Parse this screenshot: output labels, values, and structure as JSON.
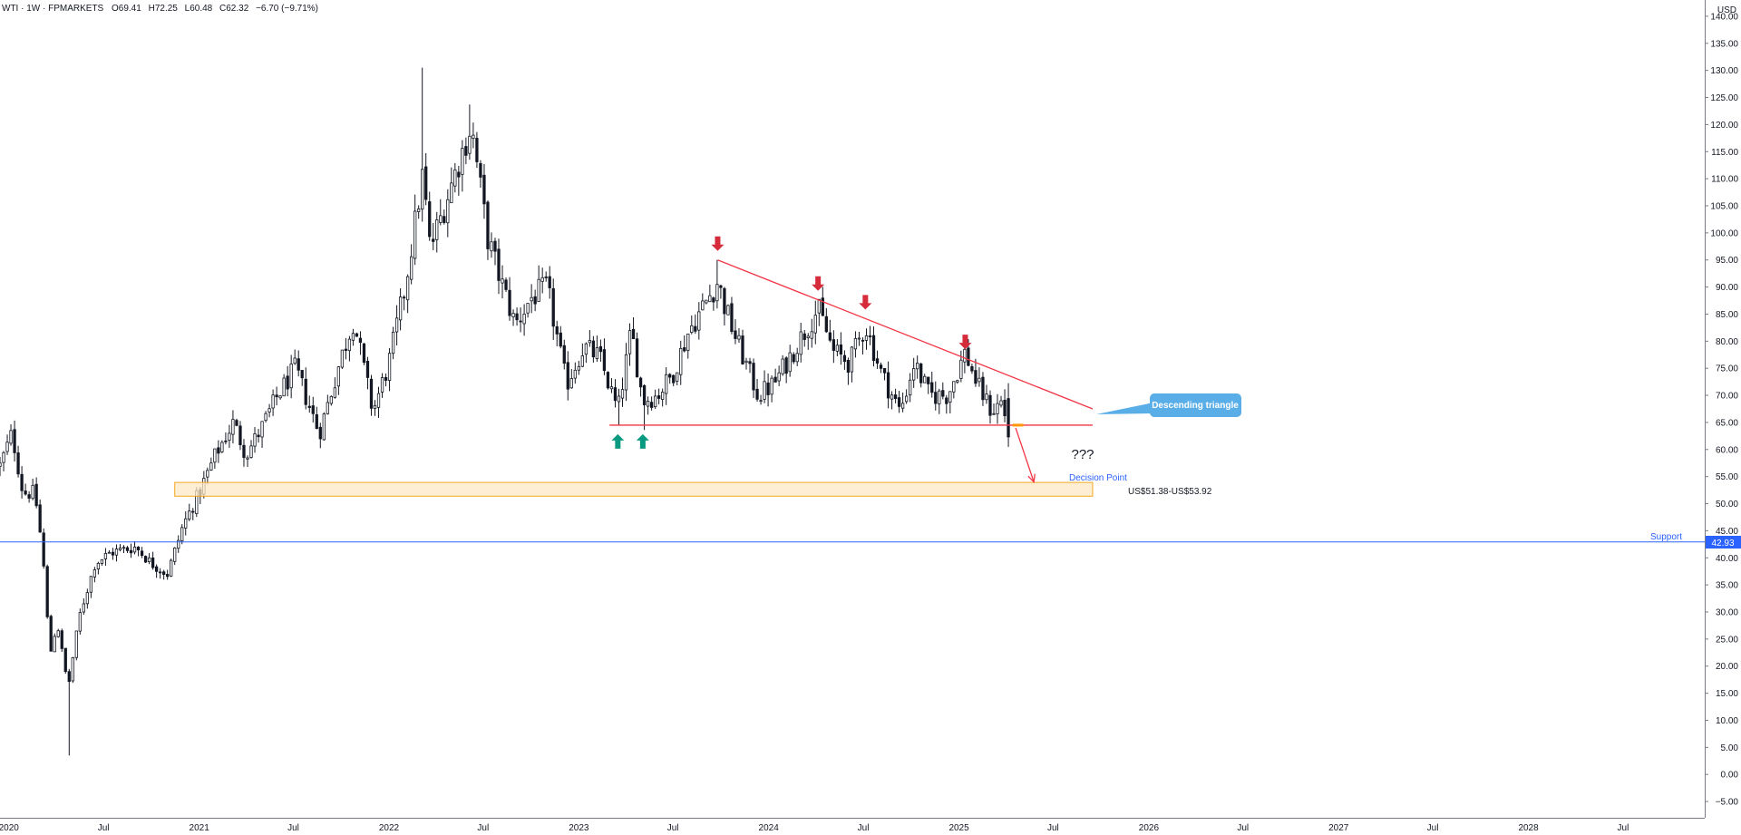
{
  "header": {
    "symbol": "WTI · 1W · FPMARKETS",
    "open_label": "O",
    "open": "69.41",
    "high_label": "H",
    "high": "72.25",
    "low_label": "L",
    "low": "60.48",
    "close_label": "C",
    "close": "62.32",
    "change": "−6.70 (−9.71%)"
  },
  "price_axis": {
    "currency": "USD",
    "last_price_label": "42.93"
  },
  "annotations": {
    "triangle_label": "Descending triangle",
    "question": "???",
    "decision_point": "Decision Point",
    "zone_label": "US$51.38-US$53.92",
    "support_label": "Support"
  },
  "colors": {
    "candle": "#131722",
    "red": "#f23645",
    "bear_arrow": "#d62b3b",
    "bull_arrow": "#089981",
    "support_line": "#2962ff",
    "zone_fill": "#fde8c4",
    "zone_border": "#f5a623",
    "callout": "#5aaee8",
    "orange_marker": "#ff9800"
  },
  "chart_data": {
    "type": "candlestick",
    "instrument": "WTI",
    "timeframe": "1W",
    "y_axis": {
      "ylim": [
        -8,
        143
      ],
      "ticks": [
        -5,
        0,
        5,
        10,
        15,
        20,
        25,
        30,
        35,
        40,
        45,
        50,
        55,
        60,
        65,
        70,
        75,
        80,
        85,
        90,
        95,
        100,
        105,
        110,
        115,
        120,
        125,
        130,
        135,
        140
      ]
    },
    "x_axis": {
      "range": [
        "2019-12-15",
        "2028-12-05"
      ],
      "ticks": [
        {
          "label": "2020",
          "date": "2020-01-01"
        },
        {
          "label": "Jul",
          "date": "2020-07-01"
        },
        {
          "label": "2021",
          "date": "2021-01-01"
        },
        {
          "label": "Jul",
          "date": "2021-07-01"
        },
        {
          "label": "2022",
          "date": "2022-01-01"
        },
        {
          "label": "Jul",
          "date": "2022-07-01"
        },
        {
          "label": "2023",
          "date": "2023-01-01"
        },
        {
          "label": "Jul",
          "date": "2023-07-01"
        },
        {
          "label": "2024",
          "date": "2024-01-01"
        },
        {
          "label": "Jul",
          "date": "2024-07-01"
        },
        {
          "label": "2025",
          "date": "2025-01-01"
        },
        {
          "label": "Jul",
          "date": "2025-07-01"
        },
        {
          "label": "2026",
          "date": "2026-01-01"
        },
        {
          "label": "Jul",
          "date": "2026-07-01"
        },
        {
          "label": "2027",
          "date": "2027-01-01"
        },
        {
          "label": "Jul",
          "date": "2027-07-01"
        },
        {
          "label": "2028",
          "date": "2028-01-01"
        },
        {
          "label": "Jul",
          "date": "2028-07-01"
        }
      ]
    },
    "anchors": [
      {
        "date": "2019-12-15",
        "close": 57
      },
      {
        "date": "2020-01-07",
        "close": 63
      },
      {
        "date": "2020-01-28",
        "close": 52
      },
      {
        "date": "2020-02-20",
        "close": 52
      },
      {
        "date": "2020-03-06",
        "close": 41
      },
      {
        "date": "2020-03-20",
        "close": 22
      },
      {
        "date": "2020-04-03",
        "close": 28
      },
      {
        "date": "2020-04-24",
        "close": 16
      },
      {
        "date": "2020-05-15",
        "close": 29
      },
      {
        "date": "2020-06-15",
        "close": 39
      },
      {
        "date": "2020-07-15",
        "close": 41
      },
      {
        "date": "2020-09-01",
        "close": 42
      },
      {
        "date": "2020-10-01",
        "close": 39
      },
      {
        "date": "2020-11-01",
        "close": 37
      },
      {
        "date": "2020-12-01",
        "close": 46
      },
      {
        "date": "2021-01-01",
        "close": 52
      },
      {
        "date": "2021-02-01",
        "close": 59
      },
      {
        "date": "2021-03-08",
        "close": 65
      },
      {
        "date": "2021-04-01",
        "close": 59
      },
      {
        "date": "2021-05-01",
        "close": 64
      },
      {
        "date": "2021-06-01",
        "close": 70
      },
      {
        "date": "2021-07-05",
        "close": 75
      },
      {
        "date": "2021-08-20",
        "close": 63
      },
      {
        "date": "2021-10-01",
        "close": 77
      },
      {
        "date": "2021-10-25",
        "close": 84
      },
      {
        "date": "2021-12-01",
        "close": 67
      },
      {
        "date": "2022-01-01",
        "close": 76
      },
      {
        "date": "2022-02-01",
        "close": 90
      },
      {
        "date": "2022-03-07",
        "close": 111
      },
      {
        "date": "2022-03-21",
        "close": 97
      },
      {
        "date": "2022-04-11",
        "close": 103
      },
      {
        "date": "2022-05-01",
        "close": 109
      },
      {
        "date": "2022-06-08",
        "close": 120
      },
      {
        "date": "2022-07-10",
        "close": 99
      },
      {
        "date": "2022-08-01",
        "close": 92
      },
      {
        "date": "2022-09-01",
        "close": 83
      },
      {
        "date": "2022-10-01",
        "close": 88
      },
      {
        "date": "2022-11-01",
        "close": 90
      },
      {
        "date": "2022-12-08",
        "close": 72
      },
      {
        "date": "2023-01-10",
        "close": 79
      },
      {
        "date": "2023-02-10",
        "close": 77
      },
      {
        "date": "2023-03-17",
        "close": 67
      },
      {
        "date": "2023-04-12",
        "close": 82
      },
      {
        "date": "2023-05-04",
        "close": 69
      },
      {
        "date": "2023-06-01",
        "close": 70
      },
      {
        "date": "2023-07-01",
        "close": 74
      },
      {
        "date": "2023-08-01",
        "close": 82
      },
      {
        "date": "2023-09-25",
        "close": 91
      },
      {
        "date": "2023-10-10",
        "close": 86
      },
      {
        "date": "2023-11-01",
        "close": 80
      },
      {
        "date": "2023-12-12",
        "close": 70
      },
      {
        "date": "2024-01-10",
        "close": 72
      },
      {
        "date": "2024-02-10",
        "close": 77
      },
      {
        "date": "2024-04-05",
        "close": 86
      },
      {
        "date": "2024-05-05",
        "close": 78
      },
      {
        "date": "2024-06-05",
        "close": 76
      },
      {
        "date": "2024-07-05",
        "close": 83
      },
      {
        "date": "2024-08-05",
        "close": 74
      },
      {
        "date": "2024-09-10",
        "close": 67
      },
      {
        "date": "2024-10-07",
        "close": 76
      },
      {
        "date": "2024-11-05",
        "close": 70
      },
      {
        "date": "2024-12-10",
        "close": 70
      },
      {
        "date": "2025-01-13",
        "close": 78
      },
      {
        "date": "2025-02-05",
        "close": 72
      },
      {
        "date": "2025-03-05",
        "close": 67
      },
      {
        "date": "2025-03-25",
        "close": 69
      },
      {
        "date": "2025-04-07",
        "close": 62.32
      }
    ],
    "extremes": [
      {
        "date": "2020-04-24",
        "low": 3.5
      },
      {
        "date": "2022-03-07",
        "high": 130.5
      },
      {
        "date": "2022-06-08",
        "high": 123.7
      },
      {
        "date": "2023-03-17",
        "low": 64.4
      },
      {
        "date": "2023-05-04",
        "low": 63.6
      },
      {
        "date": "2023-09-25",
        "high": 95.0
      },
      {
        "date": "2024-04-05",
        "high": 87.7
      },
      {
        "date": "2025-01-13",
        "high": 80.8
      },
      {
        "date": "2025-04-07",
        "low": 60.48
      }
    ],
    "last_bar": {
      "date": "2025-04-07",
      "open": 69.41,
      "high": 72.25,
      "low": 60.48,
      "close": 62.32
    },
    "drawings": {
      "descending_resistance": {
        "from": {
          "date": "2023-09-25",
          "price": 95.0
        },
        "to": {
          "date": "2025-09-15",
          "price": 67.5
        }
      },
      "horizontal_support": {
        "from": {
          "date": "2023-03-01",
          "price": 64.5
        },
        "to": {
          "date": "2025-09-15",
          "price": 64.5
        }
      },
      "zone": {
        "from_date": "2020-11-15",
        "to_date": "2025-09-15",
        "low": 51.38,
        "high": 53.92
      },
      "support_line": {
        "price": 42.93
      },
      "bear_arrows": [
        "2023-09-25",
        "2024-04-05",
        "2024-07-05",
        "2025-01-13"
      ],
      "bull_arrows": [
        "2023-03-17",
        "2023-05-04"
      ],
      "projection_arrow": {
        "from": {
          "date": "2025-04-20",
          "price": 64.0
        },
        "to": {
          "date": "2025-05-25",
          "price": 54.0
        }
      }
    }
  }
}
